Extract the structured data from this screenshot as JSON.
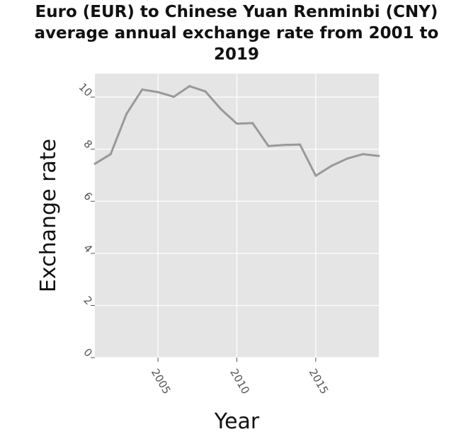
{
  "chart_data": {
    "type": "line",
    "title_lines": [
      "Euro (EUR) to Chinese Yuan Renminbi (CNY)",
      "average annual exchange rate from 2001 to",
      "2019"
    ],
    "xlabel": "Year",
    "ylabel": "Exchange rate",
    "x": [
      2001,
      2002,
      2003,
      2004,
      2005,
      2006,
      2007,
      2008,
      2009,
      2010,
      2011,
      2012,
      2013,
      2014,
      2015,
      2016,
      2017,
      2018,
      2019
    ],
    "series": [
      {
        "values": [
          7.44,
          7.81,
          9.35,
          10.29,
          10.19,
          10.01,
          10.42,
          10.22,
          9.53,
          8.98,
          9.0,
          8.12,
          8.16,
          8.18,
          6.98,
          7.36,
          7.64,
          7.81,
          7.74
        ]
      }
    ],
    "xlim": [
      2001,
      2019
    ],
    "ylim": [
      0,
      10.9
    ],
    "xticks": [
      2005,
      2010,
      2015
    ],
    "xtick_labels": [
      "2005",
      "2010",
      "2015"
    ],
    "yticks": [
      0,
      2,
      4,
      6,
      8,
      10
    ],
    "ytick_labels": [
      "0",
      "2",
      "4",
      "6",
      "8",
      "10"
    ],
    "grid": true,
    "colors": {
      "plot_background": "#e5e5e5",
      "grid": "#ffffff",
      "line": "#999999"
    }
  }
}
